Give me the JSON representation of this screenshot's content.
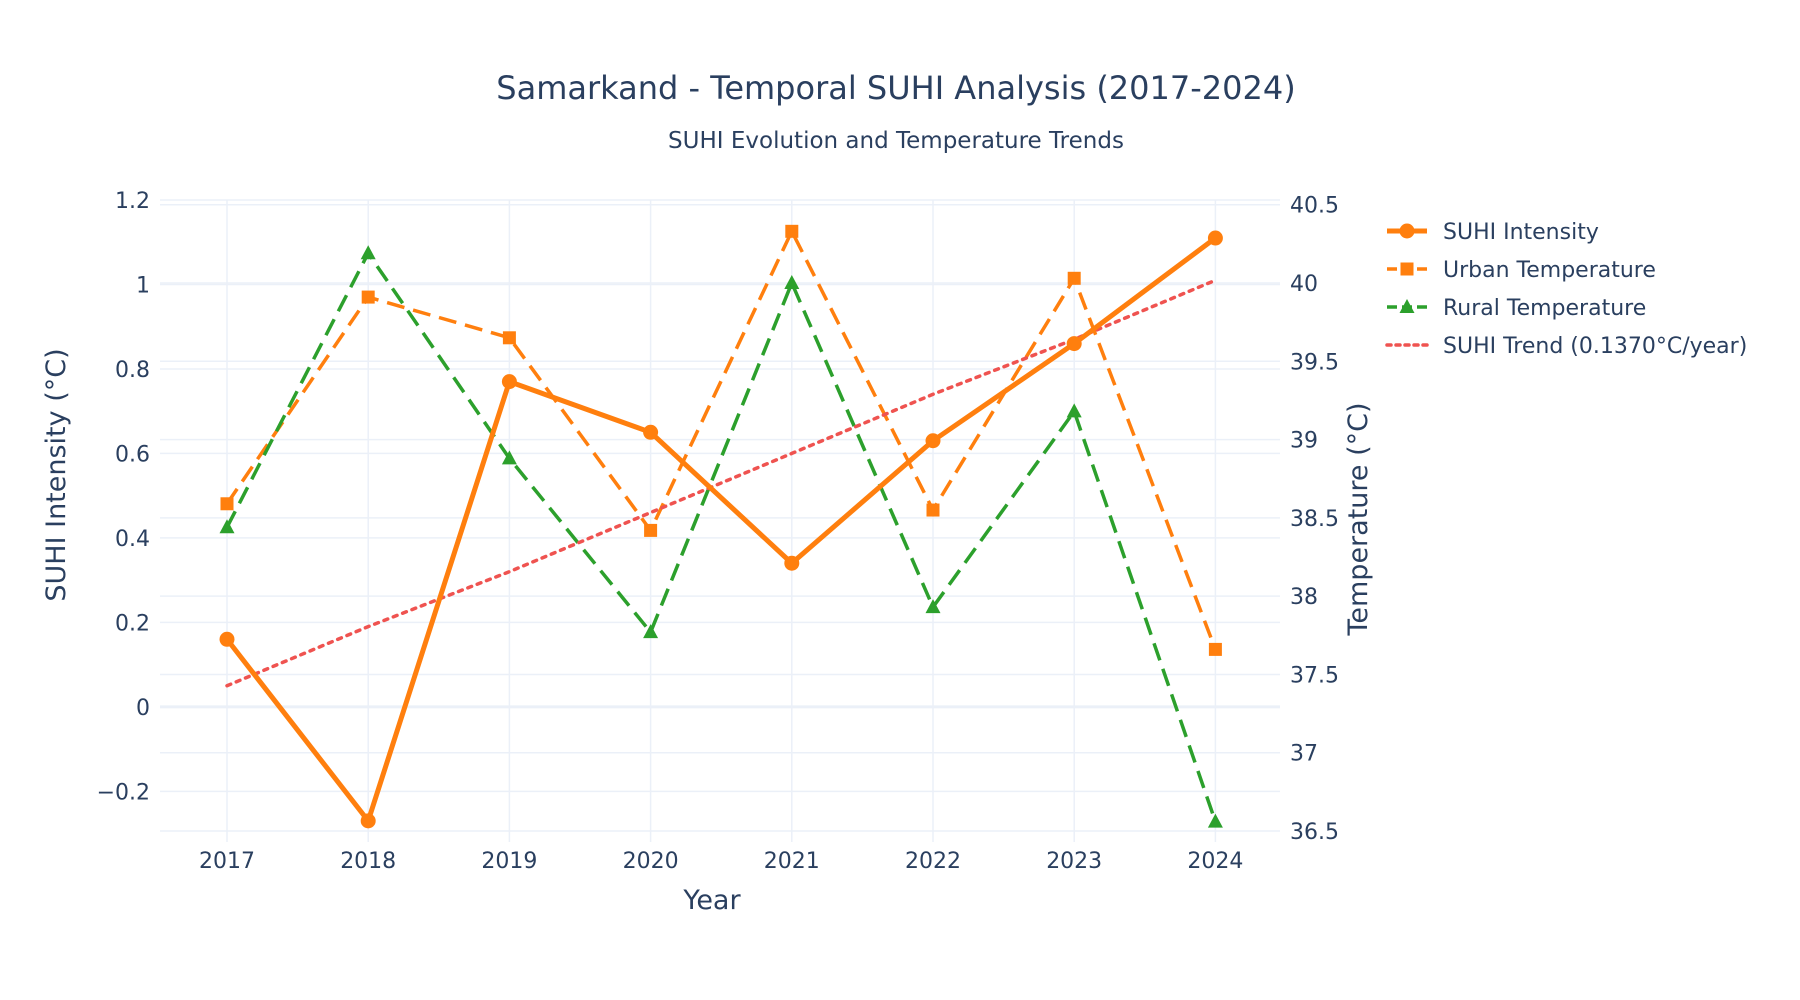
{
  "chart_data": {
    "type": "line",
    "title": "Samarkand - Temporal SUHI Analysis (2017-2024)",
    "subtitle": "SUHI Evolution and Temperature Trends",
    "xlabel": "Year",
    "ylabel": "SUHI Intensity (°C)",
    "y2label": "Temperature (°C)",
    "x": [
      2017,
      2018,
      2019,
      2020,
      2021,
      2022,
      2023,
      2024
    ],
    "x_tick_labels": [
      "2017",
      "2018",
      "2019",
      "2020",
      "2021",
      "2022",
      "2023",
      "2024"
    ],
    "ylim": [
      -0.32,
      1.2
    ],
    "y_tick_labels": [
      "−0.2",
      "0",
      "0.2",
      "0.4",
      "0.6",
      "0.8",
      "1",
      "1.2"
    ],
    "y_tick_values": [
      -0.2,
      0,
      0.2,
      0.4,
      0.6,
      0.8,
      1.0,
      1.2
    ],
    "y2lim": [
      36.43,
      40.53
    ],
    "y2_tick_labels": [
      "36.5",
      "37",
      "37.5",
      "38",
      "38.5",
      "39",
      "39.5",
      "40",
      "40.5"
    ],
    "y2_tick_values": [
      36.5,
      37,
      37.5,
      38,
      38.5,
      39,
      39.5,
      40,
      40.5
    ],
    "grid": true,
    "legend_position": "top-right",
    "series": [
      {
        "name": "SUHI Intensity",
        "axis": "y",
        "values": [
          0.16,
          -0.27,
          0.77,
          0.65,
          0.34,
          0.63,
          0.86,
          1.11
        ],
        "color": "#ff7f0e",
        "dash": "solid",
        "marker": "circle"
      },
      {
        "name": "Urban Temperature",
        "axis": "y2",
        "values": [
          38.59,
          39.91,
          39.65,
          38.42,
          40.33,
          38.55,
          40.03,
          37.66
        ],
        "color": "#ff7f0e",
        "dash": "dash",
        "marker": "square"
      },
      {
        "name": "Rural Temperature",
        "axis": "y2",
        "values": [
          38.44,
          40.19,
          38.88,
          37.77,
          40.0,
          37.93,
          39.18,
          36.56
        ],
        "color": "#2ca02c",
        "dash": "dash",
        "marker": "triangle"
      },
      {
        "name": "SUHI Trend (0.1370°C/year)",
        "axis": "y",
        "values": [
          0.05,
          0.19,
          0.32,
          0.46,
          0.6,
          0.74,
          0.87,
          1.01
        ],
        "color": "#ef5350",
        "dash": "dot",
        "marker": "none"
      }
    ]
  }
}
